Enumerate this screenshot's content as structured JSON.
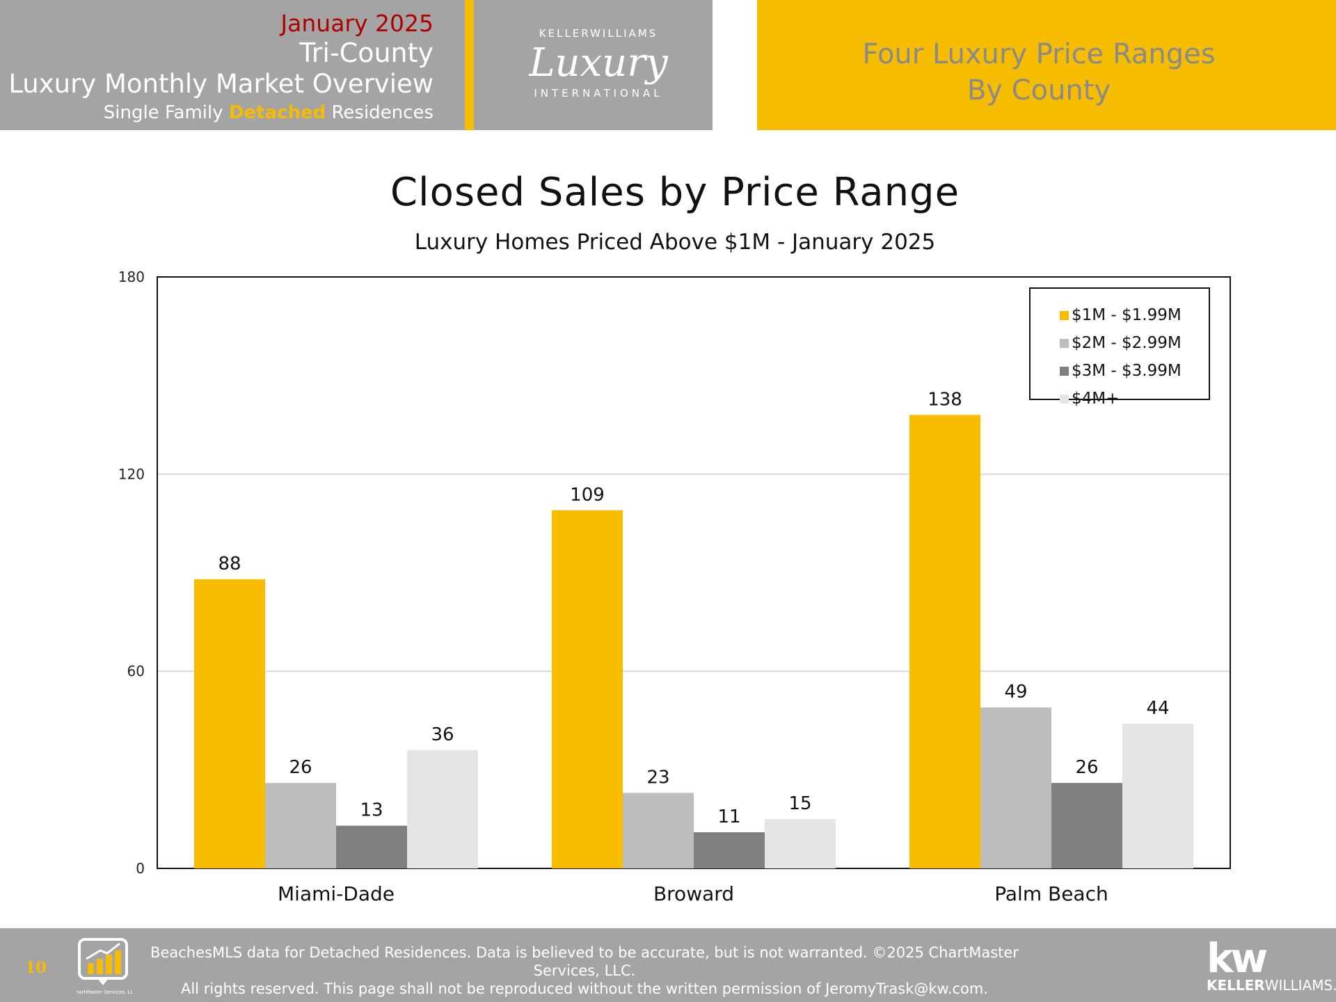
{
  "header": {
    "month": "January 2025",
    "region": "Tri-County",
    "title": "Luxury Monthly Market Overview",
    "subtitle_pre": "Single Family ",
    "subtitle_highlight": "Detached",
    "subtitle_post": " Residences",
    "logo_top": "KELLERWILLIAMS",
    "logo_main": "Luxury",
    "logo_bottom": "INTERNATIONAL",
    "right_line1": "Four Luxury Price Ranges",
    "right_line2": "By County"
  },
  "colors": {
    "gold": "#f6bc00",
    "header_gray": "#a4a4a4",
    "month_red": "#b00000"
  },
  "chart_data": {
    "type": "bar",
    "title": "Closed Sales by Price Range",
    "subtitle": "Luxury Homes Priced Above $1M - January 2025",
    "categories": [
      "Miami-Dade",
      "Broward",
      "Palm Beach"
    ],
    "series": [
      {
        "name": "$1M - $1.99M",
        "color": "#f9bd00",
        "values": [
          88,
          109,
          138
        ]
      },
      {
        "name": "$2M - $2.99M",
        "color": "#bdbdbd",
        "values": [
          26,
          23,
          49
        ]
      },
      {
        "name": "$3M - $3.99M",
        "color": "#7f7f7f",
        "values": [
          13,
          11,
          26
        ]
      },
      {
        "name": "$4M+",
        "color": "#e5e5e5",
        "values": [
          36,
          15,
          44
        ]
      }
    ],
    "ylim": [
      0,
      180
    ],
    "yticks": [
      0,
      60,
      120,
      180
    ],
    "grid": true,
    "legend": "top-right",
    "data_labels": true
  },
  "footer": {
    "page_number": "10",
    "line1": "BeachesMLS data for Detached Residences.  Data is believed to be accurate, but is not warranted.   ©2025  ChartMaster Services, LLC.",
    "line2": "All rights reserved. This page shall not be reproduced without the written permission of JeromyTrask@kw.com.",
    "cm_logo_label": "ChartMaster Services, LLC",
    "kw_mark": "kw",
    "kw_word_bold": "KELLER",
    "kw_word_rest": "WILLIAMS."
  }
}
